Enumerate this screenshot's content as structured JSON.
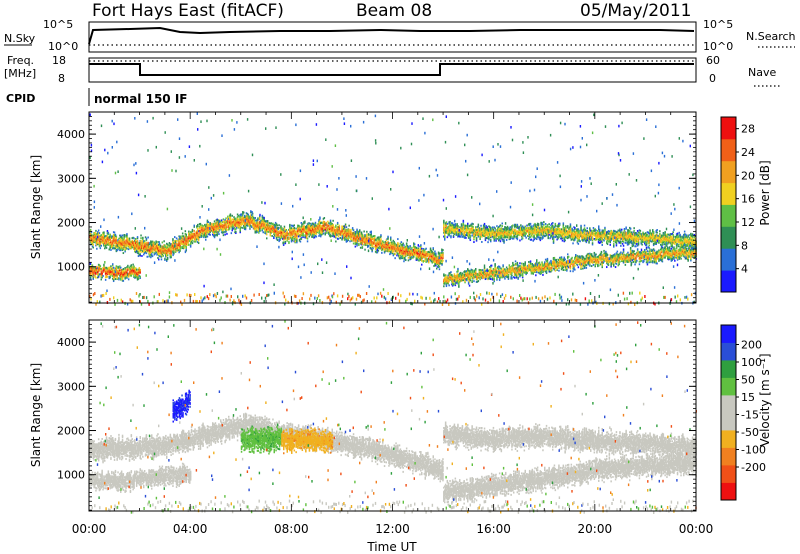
{
  "header": {
    "site": "Fort Hays East (fitACF)",
    "beam": "Beam 08",
    "date": "05/May/2011"
  },
  "top_panels": {
    "nsky_label": "N.Sky",
    "nsky_ticks": [
      "10^5",
      "10^0"
    ],
    "nsearch_label": "N.Search",
    "nsearch_ticks": [
      "10^5",
      "10^0"
    ],
    "freq_label_line1": "Freq.",
    "freq_label_line2": "[MHz]",
    "freq_ticks": [
      "18",
      "8"
    ],
    "nave_label": "Nave",
    "nave_ticks": [
      "60",
      "0"
    ],
    "cpid_label": "CPID",
    "cpid_value": "normal 150 IF"
  },
  "colors": {
    "power_scale": [
      "#1a1aff",
      "#2a6fd6",
      "#2f8f55",
      "#5fbf45",
      "#f0d020",
      "#f0a020",
      "#f06018",
      "#ee1010"
    ],
    "velocity_scale": [
      "#ee1010",
      "#f05018",
      "#f08020",
      "#f0b020",
      "#c8c8c0",
      "#c8c8c0",
      "#60c040",
      "#2f9f3f",
      "#2a4ed6",
      "#1a1aff"
    ]
  },
  "chart_data": [
    {
      "type": "heatmap",
      "title": "",
      "ylabel": "Slant Range [km]",
      "xlabel": "",
      "x_ticks": [
        "00:00",
        "04:00",
        "08:00",
        "12:00",
        "16:00",
        "20:00",
        "00:00"
      ],
      "y_ticks": [
        "1000",
        "2000",
        "3000",
        "4000"
      ],
      "xlim_hours": [
        0,
        24
      ],
      "ylim_km": [
        180,
        4500
      ],
      "colorbar": {
        "label": "Power [dB]",
        "ticks": [
          "4",
          "8",
          "12",
          "16",
          "20",
          "24",
          "28"
        ],
        "range": [
          0,
          30
        ]
      },
      "bands": [
        {
          "t0": 0.0,
          "t1": 14.0,
          "range_km": [
            1650,
            1500,
            1350,
            1850,
            2050,
            1700,
            1900,
            1600,
            1350,
            1150
          ],
          "thickness_km": 320,
          "peak_db": 22
        },
        {
          "t0": 0.0,
          "t1": 2.0,
          "range_km": [
            900,
            850
          ],
          "thickness_km": 260,
          "peak_db": 24
        },
        {
          "t0": 14.0,
          "t1": 24.0,
          "range_km": [
            1850,
            1750,
            1800,
            1700,
            1650,
            1550
          ],
          "thickness_km": 300,
          "peak_db": 18
        },
        {
          "t0": 14.0,
          "t1": 24.0,
          "range_km": [
            700,
            850,
            1000,
            1150,
            1250,
            1300
          ],
          "thickness_km": 260,
          "peak_db": 20
        }
      ]
    },
    {
      "type": "heatmap",
      "title": "",
      "ylabel": "Slant Range [km]",
      "xlabel": "Time UT",
      "x_ticks": [
        "00:00",
        "04:00",
        "08:00",
        "12:00",
        "16:00",
        "20:00",
        "00:00"
      ],
      "y_ticks": [
        "1000",
        "2000",
        "3000",
        "4000"
      ],
      "xlim_hours": [
        0,
        24
      ],
      "ylim_km": [
        180,
        4500
      ],
      "colorbar": {
        "label": "Velocity [m s⁻¹]",
        "ticks": [
          "200",
          "100",
          "50",
          "15",
          "-15",
          "-50",
          "-100",
          "-200"
        ],
        "range": [
          -250,
          250
        ]
      },
      "features": [
        {
          "t0": 0.0,
          "t1": 14.0,
          "range_km": [
            1550,
            1600,
            1650,
            1900,
            2150,
            1900,
            1800,
            1600,
            1350,
            1100
          ],
          "thickness_km": 420,
          "velocity": 0
        },
        {
          "t0": 0.0,
          "t1": 4.0,
          "range_km": [
            900,
            850,
            950,
            1000
          ],
          "thickness_km": 350,
          "velocity": 0
        },
        {
          "t0": 6.0,
          "t1": 7.6,
          "range_km": [
            1750,
            1800
          ],
          "thickness_km": 450,
          "velocity": 40
        },
        {
          "t0": 7.6,
          "t1": 9.6,
          "range_km": [
            1800,
            1750
          ],
          "thickness_km": 420,
          "velocity": -40
        },
        {
          "t0": 3.3,
          "t1": 4.0,
          "range_km": [
            2400,
            2700
          ],
          "thickness_km": 400,
          "velocity": 220
        },
        {
          "t0": 14.0,
          "t1": 24.0,
          "range_km": [
            1900,
            1800,
            1850,
            1750,
            1700,
            1600
          ],
          "thickness_km": 420,
          "velocity": 0
        },
        {
          "t0": 14.0,
          "t1": 24.0,
          "range_km": [
            600,
            750,
            900,
            1100,
            1200,
            1250
          ],
          "thickness_km": 420,
          "velocity": 0
        }
      ]
    }
  ]
}
